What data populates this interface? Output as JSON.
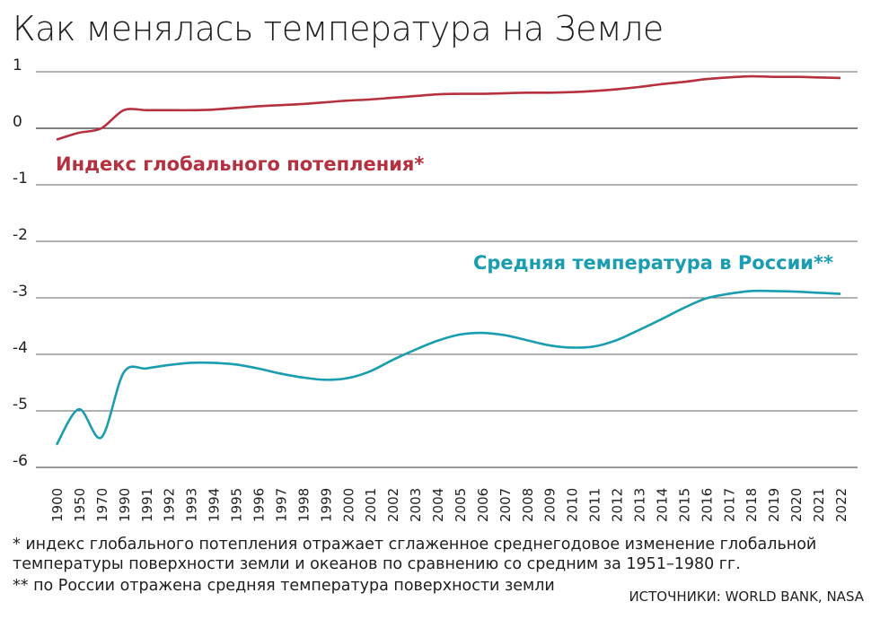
{
  "title": "Как менялась температура на Земле",
  "footnotes": [
    "* индекс глобального потепления отражает сглаженное среднегодовое изменение глобальной температуры поверхности земли и океанов по сравнению со средним за 1951–1980 гг.",
    "** по России отражена средняя температура поверхности земли"
  ],
  "footnote_lines": {
    "line1": "* индекс глобального потепления отражает сглаженное среднегодовое изменение глобальной",
    "line2": "температуры поверхности земли и океанов по сравнению со средним за 1951–1980 гг.",
    "line3": "** по России отражена средняя температура поверхности земли"
  },
  "sources": "ИСТОЧНИКИ: WORLD BANK, NASA",
  "colors": {
    "global": "#b5313f",
    "russia": "#1a9db0",
    "grid": "#333333"
  },
  "chart_data": {
    "type": "line",
    "title": "Как менялась температура на Земле",
    "xlabel": "",
    "ylabel": "",
    "ylim": [
      -6,
      1
    ],
    "yticks": [
      "1",
      "0",
      "-1",
      "-2",
      "-3",
      "-4",
      "-5",
      "-6"
    ],
    "grid": true,
    "categories": [
      "1900",
      "1950",
      "1970",
      "1990",
      "1991",
      "1992",
      "1993",
      "1994",
      "1995",
      "1996",
      "1997",
      "1998",
      "1999",
      "2000",
      "2001",
      "2002",
      "2003",
      "2004",
      "2005",
      "2006",
      "2007",
      "2008",
      "2009",
      "2010",
      "2011",
      "2012",
      "2013",
      "2014",
      "2015",
      "2016",
      "2017",
      "2018",
      "2019",
      "2020",
      "2021",
      "2022"
    ],
    "series": [
      {
        "name": "Индекс глобального потепления*",
        "color": "#b5313f",
        "values": [
          -0.2,
          -0.08,
          0.0,
          0.32,
          0.32,
          0.32,
          0.32,
          0.33,
          0.36,
          0.39,
          0.41,
          0.43,
          0.46,
          0.49,
          0.51,
          0.54,
          0.57,
          0.6,
          0.61,
          0.61,
          0.62,
          0.63,
          0.63,
          0.64,
          0.66,
          0.69,
          0.73,
          0.78,
          0.82,
          0.87,
          0.9,
          0.92,
          0.91,
          0.91,
          0.9,
          0.89
        ]
      },
      {
        "name": "Средняя температура в России**",
        "color": "#1a9db0",
        "values": [
          -5.6,
          -4.97,
          -5.47,
          -4.32,
          -4.25,
          -4.19,
          -4.15,
          -4.15,
          -4.18,
          -4.25,
          -4.34,
          -4.41,
          -4.45,
          -4.42,
          -4.3,
          -4.1,
          -3.92,
          -3.76,
          -3.65,
          -3.62,
          -3.66,
          -3.75,
          -3.84,
          -3.88,
          -3.86,
          -3.75,
          -3.57,
          -3.38,
          -3.18,
          -3.01,
          -2.93,
          -2.88,
          -2.88,
          -2.89,
          -2.91,
          -2.93
        ]
      }
    ]
  }
}
